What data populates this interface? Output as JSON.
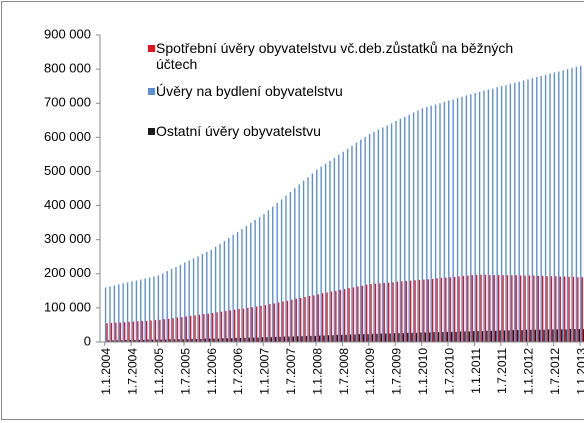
{
  "chart_data": {
    "type": "bar",
    "categories": [
      "1.1.2004",
      null,
      null,
      null,
      null,
      null,
      "1.7.2004",
      null,
      null,
      null,
      null,
      null,
      "1.1.2005",
      null,
      null,
      null,
      null,
      null,
      "1.7.2005",
      null,
      null,
      null,
      null,
      null,
      "1.1.2006",
      null,
      null,
      null,
      null,
      null,
      "1.7.2006",
      null,
      null,
      null,
      null,
      null,
      "1.1.2007",
      null,
      null,
      null,
      null,
      null,
      "1.7.2007",
      null,
      null,
      null,
      null,
      null,
      "1.1.2008",
      null,
      null,
      null,
      null,
      null,
      "1.7.2008",
      null,
      null,
      null,
      null,
      null,
      "1.1.2009",
      null,
      null,
      null,
      null,
      null,
      "1.7.2009",
      null,
      null,
      null,
      null,
      null,
      "1.1.2010",
      null,
      null,
      null,
      null,
      null,
      "1.7.2010",
      null,
      null,
      null,
      null,
      null,
      "1.1.2011",
      null,
      null,
      null,
      null,
      null,
      "1.7.2011",
      null,
      null,
      null,
      null,
      null,
      "1.1.2012",
      null,
      null,
      null,
      null,
      null,
      "1.7.2012",
      null,
      null,
      null,
      null,
      null,
      "1.1.2013"
    ],
    "series": [
      {
        "name": "Spotřební úvěry obyvatelstvu vč.deb.zůstatků na běžných účtech",
        "color": "#e3121d",
        "values": [
          55000,
          56000,
          57000,
          57000,
          58000,
          59000,
          60000,
          61000,
          62000,
          62000,
          63000,
          64000,
          65000,
          67000,
          68000,
          70000,
          72000,
          73000,
          75000,
          77000,
          78000,
          80000,
          82000,
          83000,
          85000,
          87000,
          89000,
          91000,
          93000,
          95000,
          97000,
          98000,
          100000,
          102000,
          104000,
          106000,
          108000,
          111000,
          113000,
          116000,
          119000,
          121000,
          124000,
          127000,
          129000,
          132000,
          135000,
          137000,
          140000,
          143000,
          145000,
          148000,
          150000,
          153000,
          155000,
          158000,
          160000,
          163000,
          165000,
          168000,
          170000,
          171000,
          172000,
          173000,
          174000,
          175000,
          177000,
          178000,
          179000,
          180000,
          181000,
          182000,
          183000,
          184000,
          185000,
          187000,
          188000,
          189000,
          190000,
          191000,
          192000,
          194000,
          195000,
          196000,
          197000,
          197000,
          197000,
          196000,
          196000,
          196000,
          196000,
          196000,
          196000,
          196000,
          195000,
          195000,
          195000,
          195000,
          194000,
          194000,
          193000,
          193000,
          193000,
          192000,
          192000,
          191000,
          191000,
          190000,
          190000
        ]
      },
      {
        "name": "Úvěry na bydlení obyvatelstvu",
        "color": "#5b8ed3",
        "values": [
          160000,
          163000,
          166000,
          169000,
          172000,
          175000,
          178000,
          180000,
          183000,
          186000,
          189000,
          192000,
          195000,
          201000,
          208000,
          214000,
          220000,
          226000,
          233000,
          239000,
          245000,
          251000,
          258000,
          264000,
          270000,
          279000,
          288000,
          296000,
          305000,
          314000,
          323000,
          331000,
          340000,
          349000,
          358000,
          366000,
          375000,
          386000,
          397000,
          408000,
          418000,
          429000,
          440000,
          451000,
          462000,
          473000,
          483000,
          494000,
          505000,
          514000,
          523000,
          531000,
          540000,
          549000,
          558000,
          566000,
          575000,
          584000,
          593000,
          601000,
          610000,
          616000,
          623000,
          629000,
          635000,
          641000,
          648000,
          654000,
          660000,
          666000,
          673000,
          679000,
          685000,
          689000,
          693000,
          696000,
          700000,
          704000,
          708000,
          711000,
          715000,
          719000,
          723000,
          726000,
          730000,
          733000,
          737000,
          740000,
          743000,
          747000,
          750000,
          753000,
          757000,
          760000,
          763000,
          767000,
          770000,
          773000,
          777000,
          780000,
          783000,
          787000,
          790000,
          793000,
          797000,
          800000,
          803000,
          807000,
          810000
        ]
      },
      {
        "name": "Ostatní úvěry obyvatelstvu",
        "color": "#1a1a1a",
        "values": [
          5000,
          5000,
          5000,
          5000,
          6000,
          6000,
          6000,
          6000,
          6000,
          7000,
          7000,
          7000,
          7000,
          7000,
          8000,
          8000,
          8000,
          8000,
          8000,
          9000,
          9000,
          9000,
          10000,
          10000,
          10000,
          10000,
          11000,
          11000,
          11000,
          12000,
          12000,
          12000,
          13000,
          13000,
          13000,
          14000,
          14000,
          14000,
          15000,
          15000,
          16000,
          16000,
          16000,
          17000,
          17000,
          18000,
          18000,
          18000,
          19000,
          19000,
          20000,
          20000,
          21000,
          21000,
          21000,
          22000,
          22000,
          23000,
          23000,
          23000,
          24000,
          24000,
          25000,
          25000,
          25000,
          26000,
          26000,
          26000,
          27000,
          27000,
          27000,
          28000,
          28000,
          28000,
          29000,
          29000,
          29000,
          30000,
          30000,
          30000,
          31000,
          31000,
          31000,
          32000,
          32000,
          32000,
          33000,
          33000,
          33000,
          34000,
          34000,
          34000,
          35000,
          35000,
          35000,
          36000,
          36000,
          36000,
          36000,
          36000,
          37000,
          37000,
          37000,
          37000,
          37000,
          38000,
          38000,
          38000,
          38000
        ]
      }
    ],
    "ylim": [
      0,
      900000
    ],
    "yticks": [
      0,
      {
        "value": 100000,
        "label": "100 000"
      },
      {
        "value": 200000,
        "label": "200 000"
      },
      {
        "value": 300000,
        "label": "300 000"
      },
      {
        "value": 400000,
        "label": "400 000"
      },
      {
        "value": 500000,
        "label": "500 000"
      },
      {
        "value": 600000,
        "label": "600 000"
      },
      {
        "value": 700000,
        "label": "700 000"
      },
      {
        "value": 800000,
        "label": "800 000"
      },
      {
        "value": 900000,
        "label": "900 000"
      }
    ],
    "grid": false
  }
}
